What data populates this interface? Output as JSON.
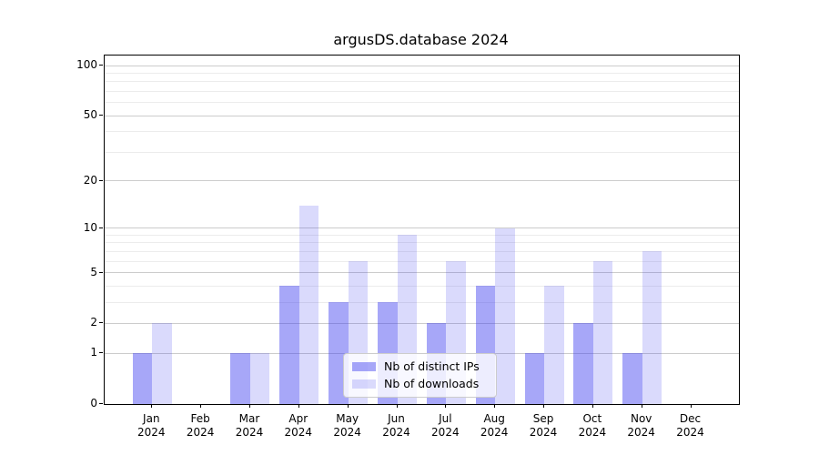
{
  "chart_data": {
    "type": "bar",
    "title": "argusDS.database 2024",
    "categories": [
      "Jan",
      "Feb",
      "Mar",
      "Apr",
      "May",
      "Jun",
      "Jul",
      "Aug",
      "Sep",
      "Oct",
      "Nov",
      "Dec"
    ],
    "year": "2024",
    "series": [
      {
        "name": "Nb of distinct IPs",
        "key": "distinct-ips",
        "color": "rgba(60,60,240,0.45)",
        "values": [
          1,
          0,
          1,
          4,
          3,
          3,
          2,
          4,
          1,
          2,
          1,
          0
        ]
      },
      {
        "name": "Nb of downloads",
        "key": "downloads",
        "color": "rgba(60,60,240,0.19)",
        "values": [
          2,
          0,
          1,
          14,
          6,
          9,
          6,
          10,
          4,
          6,
          7,
          0
        ]
      }
    ],
    "xlabel": "",
    "ylabel": "",
    "yscale": "log1p",
    "ylim": [
      0,
      115
    ],
    "yticks_major": [
      0,
      1,
      2,
      5,
      10,
      20,
      50,
      100
    ],
    "yticks_minor": [
      3,
      4,
      6,
      7,
      8,
      9,
      30,
      40,
      60,
      70,
      80,
      90
    ],
    "grid": true,
    "legend_position": "lower-center",
    "colors": {
      "background": "#ffffff",
      "spine": "#000000",
      "grid_major": "#cccccc",
      "grid_minor": "#ececec",
      "text": "#000000"
    }
  }
}
